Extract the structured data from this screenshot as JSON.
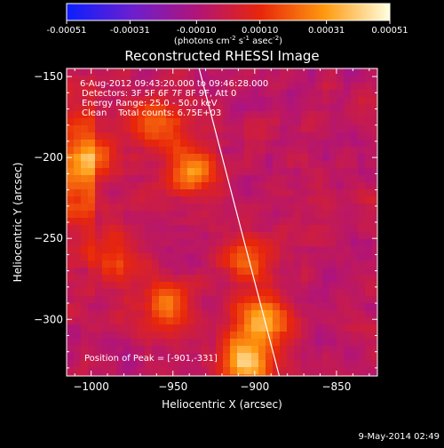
{
  "colorbar": {
    "ticks": [
      "-0.00051",
      "-0.00031",
      "-0.00010",
      "0.00010",
      "0.00031",
      "0.00051"
    ],
    "label_main": "(photons cm",
    "label_exp1": "-2",
    "label_mid": " s",
    "label_exp2": "-1",
    "label_mid2": " asec",
    "label_exp3": "-2",
    "label_end": ")",
    "colors": [
      "#0a1fff",
      "#6a1fd0",
      "#b0147a",
      "#e8260a",
      "#ff9a10",
      "#ffffe0"
    ]
  },
  "annotations": {
    "line1": "6-Aug-2012 09:43:20.000 to 09:46:28.000",
    "line2": "Detectors: 3F 5F 6F 7F 8F 9F, Att 0",
    "line3": "Energy Range: 25.0 - 50.0 keV",
    "line4": "Clean    Total counts: 6.75E+03",
    "peak": "Position of Peak = [-901,-331]"
  },
  "footer": {
    "timestamp": "9-May-2014 02:49"
  },
  "chart_data": {
    "type": "heatmap",
    "title": "Reconstructed RHESSI Image",
    "xlabel": "Heliocentric X (arcsec)",
    "ylabel": "Heliocentric Y (arcsec)",
    "xlim": [
      -1015,
      -825
    ],
    "ylim": [
      -335,
      -145
    ],
    "x_ticks": [
      -1000,
      -950,
      -900,
      -850
    ],
    "y_ticks": [
      -150,
      -200,
      -250,
      -300
    ],
    "x_tick_labels": [
      "−1000",
      "−950",
      "−900",
      "−850"
    ],
    "y_tick_labels": [
      "−150",
      "−200",
      "−250",
      "−300"
    ],
    "value_range": [
      -0.00051,
      0.00051
    ],
    "peak_position": [
      -901,
      -331
    ],
    "limb_line": [
      [
        -934,
        -145
      ],
      [
        -885,
        -335
      ]
    ],
    "bright_sources": [
      {
        "x": -960,
        "y": -180,
        "value": 0.00035
      },
      {
        "x": -1000,
        "y": -200,
        "value": 0.0003
      },
      {
        "x": -938,
        "y": -208,
        "value": 0.0004
      },
      {
        "x": -985,
        "y": -262,
        "value": 0.00025
      },
      {
        "x": -905,
        "y": -262,
        "value": 0.0003
      },
      {
        "x": -955,
        "y": -292,
        "value": 0.00035
      },
      {
        "x": -895,
        "y": -300,
        "value": 0.00045
      },
      {
        "x": -905,
        "y": -325,
        "value": 0.00051
      }
    ]
  }
}
